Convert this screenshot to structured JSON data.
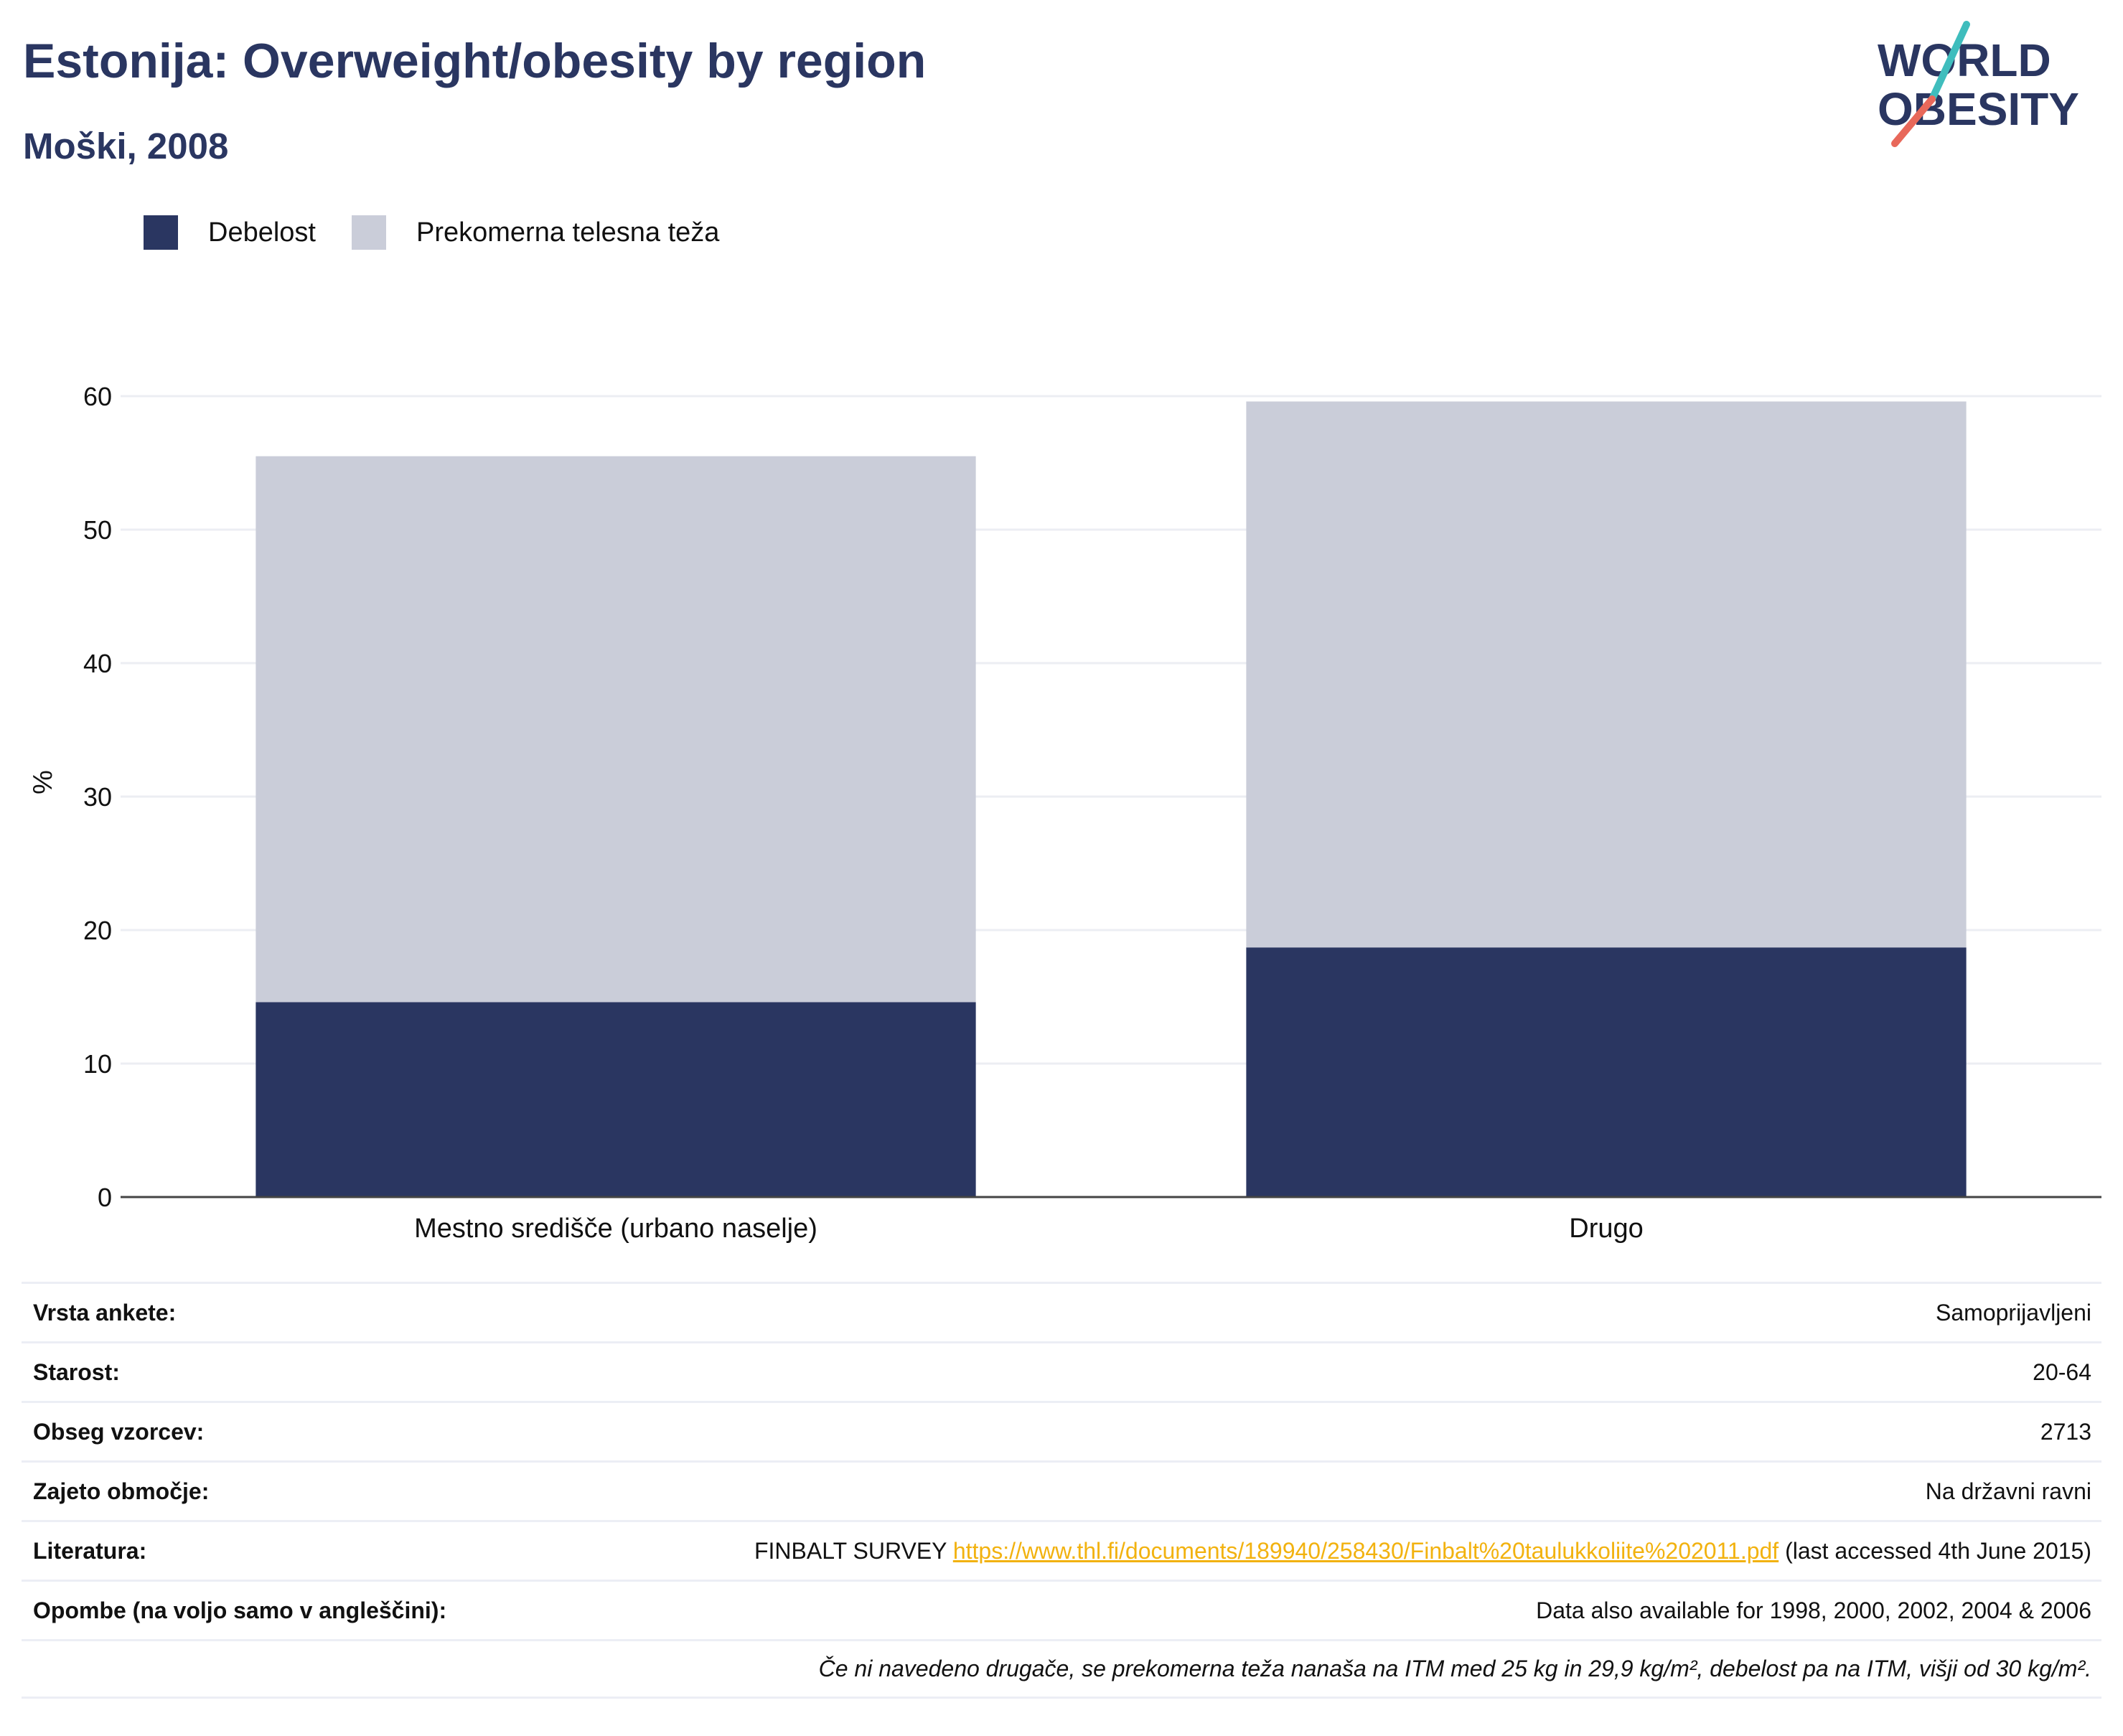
{
  "title": "Estonija: Overweight/obesity by region",
  "subtitle": "Moški, 2008",
  "logo": {
    "line1": "WORLD",
    "line2": "OBESITY"
  },
  "colors": {
    "obesity": "#2a3661",
    "overweight": "#cacdd9",
    "title": "#2a3661",
    "link": "#f2b20f",
    "logo_teal": "#3fbdbd",
    "logo_red": "#e8685a"
  },
  "chart_data": {
    "type": "bar",
    "stacked": true,
    "categories": [
      "Mestno središče (urbano naselje)",
      "Drugo"
    ],
    "series": [
      {
        "name": "Debelost",
        "values": [
          14.6,
          18.7
        ]
      },
      {
        "name": "Prekomerna telesna teža",
        "values": [
          40.9,
          40.9
        ]
      }
    ],
    "ylabel": "%",
    "ylim": [
      0,
      60
    ],
    "yticks": [
      "0",
      "10",
      "20",
      "30",
      "40",
      "50",
      "60"
    ],
    "grid": true,
    "legend_position": "top-left"
  },
  "meta": {
    "survey_label": "Vrsta ankete:",
    "survey_value": "Samoprijavljeni",
    "age_label": "Starost:",
    "age_value": "20-64",
    "sample_label": "Obseg vzorcev:",
    "sample_value": "2713",
    "area_label": "Zajeto območje:",
    "area_value": "Na državni ravni",
    "ref_label": "Literatura:",
    "ref_prefix": "FINBALT SURVEY",
    "ref_link": "https://www.thl.fi/documents/189940/258430/Finbalt%20taulukkoliite%202011.pdf",
    "ref_suffix": "(last accessed 4th June 2015)",
    "notes_label": "Opombe (na voljo samo v angleščini):",
    "notes_value": "Data also available for 1998, 2000, 2002, 2004 & 2006",
    "footnote": "Če ni navedeno drugače, se prekomerna teža nanaša na ITM med 25 kg in 29,9 kg/m², debelost pa na ITM, višji od 30 kg/m²."
  }
}
